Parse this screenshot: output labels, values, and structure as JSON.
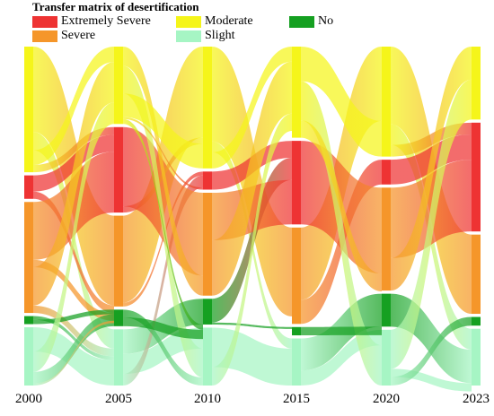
{
  "chart_data": {
    "type": "sankey",
    "title": "Transfer matrix of desertification",
    "years": [
      "2000",
      "2005",
      "2010",
      "2015",
      "2020",
      "2023"
    ],
    "categories": [
      {
        "key": "es",
        "name": "Extremely Severe",
        "color": "#ee3333"
      },
      {
        "key": "se",
        "name": "Severe",
        "color": "#f5962a"
      },
      {
        "key": "mo",
        "name": "Moderate",
        "color": "#f5f51a"
      },
      {
        "key": "sl",
        "name": "Slight",
        "color": "#a6f5c4"
      },
      {
        "key": "no",
        "name": "No",
        "color": "#15a021"
      }
    ],
    "stack_order": [
      "mo",
      "es",
      "se",
      "no",
      "sl"
    ],
    "node_values": {
      "2000": {
        "mo": 34.3,
        "es": 6.4,
        "se": 30.3,
        "no": 2.2,
        "sl": 15.9
      },
      "2005": {
        "se": 23.6,
        "sl": 14.6,
        "es": 22.2,
        "mo": 20.1,
        "no": 4.3
      },
      "2010": {
        "mo": 30.3,
        "es": 4.5,
        "no": 6.4,
        "se": 25.6,
        "sl": 14.4
      },
      "2015": {
        "se": 25.6,
        "sl": 12.5,
        "es": 22.2,
        "mo": 24.2,
        "no": 2.2
      },
      "2020": {
        "mo": 28.4,
        "es": 6.4,
        "no": 8.5,
        "se": 26.6,
        "sl": 14.4
      },
      "2023": {
        "se": 20.1,
        "sl": 14.4,
        "es": 27.6,
        "mo": 18.5,
        "no": 2.2
      }
    },
    "flows": [
      {
        "year": "2000",
        "from": "mo",
        "to": [
          "se",
          23.3,
          "sl",
          5.0,
          "mo",
          4.0,
          "es",
          2.0
        ]
      },
      {
        "year": "2000",
        "from": "es",
        "to": [
          "es",
          4.4,
          "se",
          2.0
        ]
      },
      {
        "year": "2000",
        "from": "se",
        "to": [
          "es",
          15.8,
          "se",
          2.0,
          "mo",
          10.5,
          "sl",
          2.0
        ]
      },
      {
        "year": "2000",
        "from": "no",
        "to": [
          "sl",
          1.0,
          "no",
          1.2
        ]
      },
      {
        "year": "2000",
        "from": "sl",
        "to": [
          "sl",
          6.6,
          "mo",
          5.6,
          "no",
          3.1,
          "se",
          0.6
        ]
      },
      {
        "year": "2005",
        "from": "se",
        "to": [
          "mo",
          22.6,
          "es",
          1.0
        ]
      },
      {
        "year": "2005",
        "from": "sl",
        "to": [
          "no",
          6.4,
          "sl",
          5.2,
          "es",
          3.0
        ]
      },
      {
        "year": "2005",
        "from": "es",
        "to": [
          "se",
          20.6,
          "mo",
          1.6
        ]
      },
      {
        "year": "2005",
        "from": "mo",
        "to": [
          "se",
          5.0,
          "sl",
          7.2,
          "mo",
          6.1,
          "es",
          0.5,
          "no",
          1.3
        ]
      },
      {
        "year": "2005",
        "from": "no",
        "to": [
          "sl",
          2.0,
          "no",
          2.3
        ]
      },
      {
        "year": "2010",
        "from": "mo",
        "to": [
          "se",
          23.6,
          "sl",
          2.7,
          "mo",
          4.0
        ]
      },
      {
        "year": "2010",
        "from": "es",
        "to": [
          "es",
          4.5
        ]
      },
      {
        "year": "2010",
        "from": "no",
        "to": [
          "es",
          5.9,
          "no",
          0.5
        ]
      },
      {
        "year": "2010",
        "from": "se",
        "to": [
          "es",
          11.8,
          "mo",
          13.8
        ]
      },
      {
        "year": "2010",
        "from": "sl",
        "to": [
          "sl",
          9.8,
          "mo",
          4.6
        ]
      },
      {
        "year": "2015",
        "from": "se",
        "to": [
          "mo",
          19.2,
          "es",
          6.4
        ]
      },
      {
        "year": "2015",
        "from": "sl",
        "to": [
          "no",
          8.5,
          "sl",
          4.0
        ]
      },
      {
        "year": "2015",
        "from": "es",
        "to": [
          "se",
          22.2
        ]
      },
      {
        "year": "2015",
        "from": "mo",
        "to": [
          "mo",
          9.2,
          "sl",
          10.4,
          "se",
          4.6
        ]
      },
      {
        "year": "2015",
        "from": "no",
        "to": [
          "no",
          2.2
        ]
      },
      {
        "year": "2020",
        "from": "mo",
        "to": [
          "se",
          20.1,
          "sl",
          5.3,
          "es",
          3.0
        ]
      },
      {
        "year": "2020",
        "from": "es",
        "to": [
          "es",
          6.4
        ]
      },
      {
        "year": "2020",
        "from": "no",
        "to": [
          "sl",
          8.5
        ]
      },
      {
        "year": "2020",
        "from": "se",
        "to": [
          "es",
          18.2,
          "mo",
          8.4
        ]
      },
      {
        "year": "2020",
        "from": "sl",
        "to": [
          "mo",
          10.1,
          "sl",
          2.1,
          "no",
          2.2
        ]
      }
    ]
  }
}
